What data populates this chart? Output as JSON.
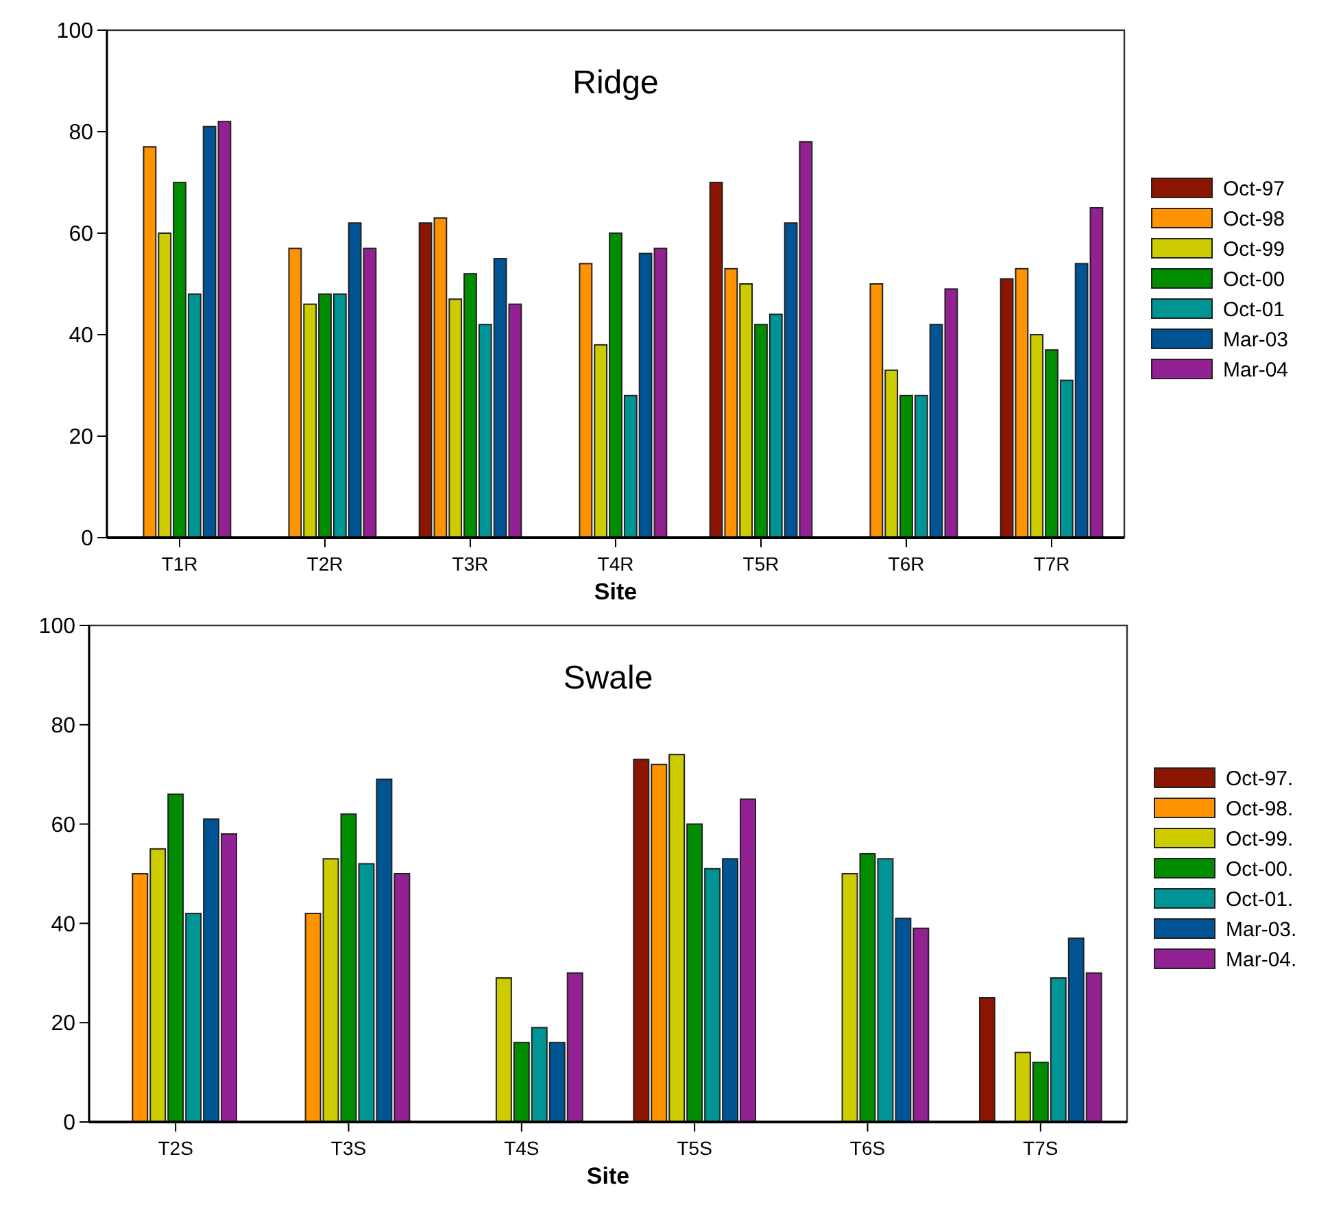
{
  "chart_data": [
    {
      "type": "bar",
      "title": "Ridge",
      "xlabel": "Site",
      "categories": [
        "T1R",
        "T2R",
        "T3R",
        "T4R",
        "T5R",
        "T6R",
        "T7R"
      ],
      "ylim": [
        0,
        100
      ],
      "yticks": [
        0,
        20,
        40,
        60,
        80,
        100
      ],
      "grid": false,
      "legend": "right",
      "series": [
        {
          "name": "Oct-97",
          "color": "#8b1500",
          "values": [
            null,
            null,
            62,
            null,
            70,
            null,
            51
          ]
        },
        {
          "name": "Oct-98",
          "color": "#ff9400",
          "values": [
            77,
            57,
            63,
            54,
            53,
            50,
            53
          ]
        },
        {
          "name": "Oct-99",
          "color": "#cccc00",
          "values": [
            60,
            46,
            47,
            38,
            50,
            33,
            40
          ]
        },
        {
          "name": "Oct-00",
          "color": "#008e00",
          "values": [
            70,
            48,
            52,
            60,
            42,
            28,
            37
          ]
        },
        {
          "name": "Oct-01",
          "color": "#009494",
          "values": [
            48,
            48,
            42,
            28,
            44,
            28,
            31
          ]
        },
        {
          "name": "Mar-03",
          "color": "#005493",
          "values": [
            81,
            62,
            55,
            56,
            62,
            42,
            54
          ]
        },
        {
          "name": "Mar-04",
          "color": "#942193",
          "values": [
            82,
            57,
            46,
            57,
            78,
            49,
            65
          ]
        }
      ]
    },
    {
      "type": "bar",
      "title": "Swale",
      "xlabel": "Site",
      "categories": [
        "T2S",
        "T3S",
        "T4S",
        "T5S",
        "T6S",
        "T7S"
      ],
      "ylim": [
        0,
        100
      ],
      "yticks": [
        0,
        20,
        40,
        60,
        80,
        100
      ],
      "grid": false,
      "legend": "right",
      "series": [
        {
          "name": "Oct-97.",
          "color": "#8b1500",
          "values": [
            null,
            null,
            null,
            73,
            null,
            25
          ]
        },
        {
          "name": "Oct-98.",
          "color": "#ff9400",
          "values": [
            50,
            42,
            null,
            72,
            null,
            null
          ]
        },
        {
          "name": "Oct-99.",
          "color": "#cccc00",
          "values": [
            55,
            53,
            29,
            74,
            50,
            14
          ]
        },
        {
          "name": "Oct-00.",
          "color": "#008e00",
          "values": [
            66,
            62,
            16,
            60,
            54,
            12
          ]
        },
        {
          "name": "Oct-01.",
          "color": "#009494",
          "values": [
            42,
            52,
            19,
            51,
            53,
            29
          ]
        },
        {
          "name": "Mar-03.",
          "color": "#005493",
          "values": [
            61,
            69,
            16,
            53,
            41,
            37
          ]
        },
        {
          "name": "Mar-04.",
          "color": "#942193",
          "values": [
            58,
            50,
            30,
            65,
            39,
            30
          ]
        }
      ]
    }
  ]
}
